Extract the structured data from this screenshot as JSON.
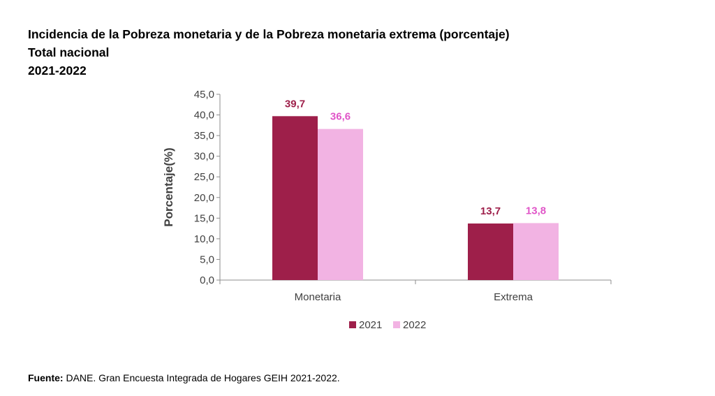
{
  "header": {
    "title": "Incidencia de la Pobreza monetaria y de la Pobreza monetaria extrema (porcentaje)",
    "subtitle": "Total nacional",
    "period": "2021-2022"
  },
  "footer": {
    "source_label": "Fuente:",
    "source_text": "DANE. Gran Encuesta Integrada de Hogares GEIH 2021-2022."
  },
  "colors": {
    "series_2021": "#9e1f4a",
    "series_2022": "#f2b3e3",
    "label_2021": "#9e1f4a",
    "label_2022": "#e055c8",
    "axis": "#8c8c8c",
    "text": "#404040"
  },
  "chart_data": {
    "type": "bar",
    "title": "Incidencia de la Pobreza monetaria y de la Pobreza monetaria extrema (porcentaje)",
    "categories": [
      "Monetaria",
      "Extrema"
    ],
    "series": [
      {
        "name": "2021",
        "values": [
          39.7,
          13.7
        ],
        "labels": [
          "39,7",
          "13,7"
        ]
      },
      {
        "name": "2022",
        "values": [
          36.6,
          13.8
        ],
        "labels": [
          "36,6",
          "13,8"
        ]
      }
    ],
    "xlabel": "",
    "ylabel": "Porcentaje(%)",
    "ylim": [
      0,
      45
    ],
    "yticks": [
      "0,0",
      "5,0",
      "10,0",
      "15,0",
      "20,0",
      "25,0",
      "30,0",
      "35,0",
      "40,0",
      "45,0"
    ],
    "grid": false,
    "legend_position": "bottom"
  }
}
